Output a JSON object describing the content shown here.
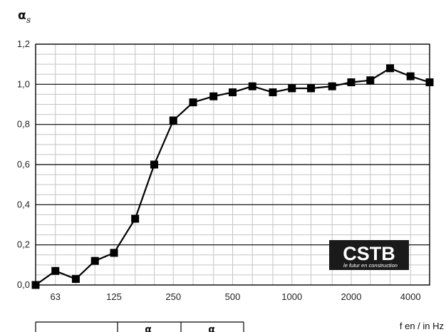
{
  "chart_data": {
    "type": "line",
    "ylabel_main": "α",
    "ylabel_sub": "s",
    "xlabel": "f en / in Hz",
    "x_scale": "log",
    "x_tick_labels": [
      "63",
      "125",
      "250",
      "500",
      "1000",
      "2000",
      "4000"
    ],
    "y_tick_labels": [
      "0,0",
      "0,2",
      "0,4",
      "0,6",
      "0,8",
      "1,0",
      "1,2"
    ],
    "ylim": [
      0,
      1.2
    ],
    "grid": true,
    "series": [
      {
        "x": [
          50,
          63,
          80,
          100,
          125,
          160,
          200,
          250,
          315,
          400,
          500,
          630,
          800,
          1000,
          1250,
          1600,
          2000,
          2500,
          3150,
          4000,
          5000
        ],
        "values": [
          0.0,
          0.07,
          0.03,
          0.12,
          0.16,
          0.33,
          0.6,
          0.82,
          0.91,
          0.94,
          0.96,
          0.99,
          0.96,
          0.98,
          0.98,
          0.99,
          1.01,
          1.02,
          1.08,
          1.04,
          1.01
        ],
        "color": "#000000"
      }
    ]
  },
  "logo": {
    "text": "CSTB",
    "tagline": "le futur en construction",
    "color": "#1a1a1a"
  },
  "table_partial": {
    "headers": [
      "α",
      "α"
    ]
  }
}
